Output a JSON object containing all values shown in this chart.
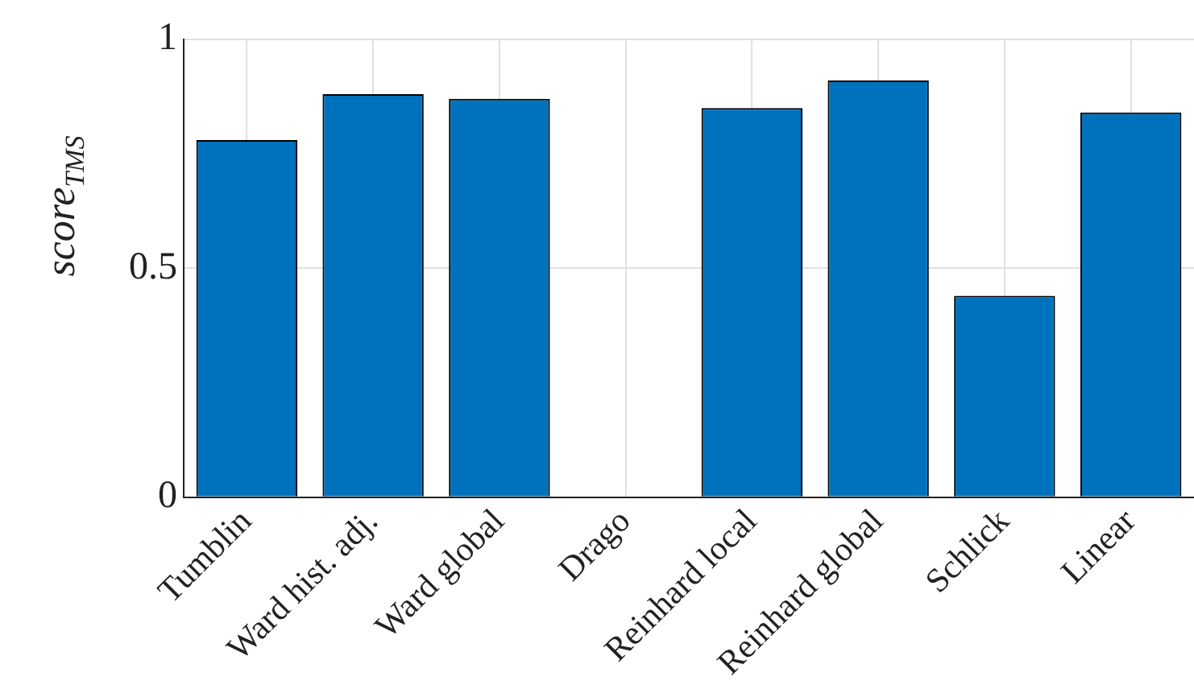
{
  "chart_data": {
    "type": "bar",
    "ylabel": "score$_{TMS}$",
    "categories": [
      "Tumblin",
      "Ward hist. adj.",
      "Ward global",
      "Drago",
      "Reinhard local",
      "Reinhard global",
      "Schlick",
      "Linear"
    ],
    "values": [
      0.78,
      0.88,
      0.87,
      0,
      0.85,
      0.91,
      0.44,
      0.84
    ],
    "color": "#0072bd",
    "ylim": [
      0,
      1
    ],
    "yticks": [
      0,
      0.5,
      1
    ],
    "grid": true
  }
}
